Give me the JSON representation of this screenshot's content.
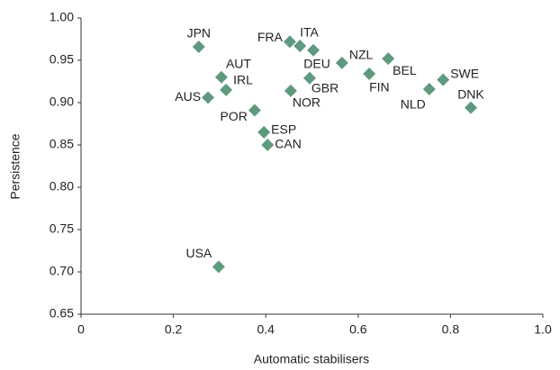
{
  "chart_data": {
    "type": "scatter",
    "xlabel": "Automatic stabilisers",
    "ylabel": "Persistence",
    "labels": [
      "JPN",
      "AUT",
      "IRL",
      "AUS",
      "POR",
      "ESP",
      "CAN",
      "NOR",
      "GBR",
      "FRA",
      "ITA",
      "DEU",
      "NZL",
      "BEL",
      "FIN",
      "NLD",
      "SWE",
      "DNK",
      "USA"
    ],
    "x": [
      0.255,
      0.304,
      0.314,
      0.275,
      0.376,
      0.396,
      0.404,
      0.454,
      0.495,
      0.452,
      0.474,
      0.503,
      0.565,
      0.665,
      0.624,
      0.754,
      0.784,
      0.844,
      0.298
    ],
    "values": [
      0.966,
      0.93,
      0.915,
      0.906,
      0.891,
      0.865,
      0.85,
      0.914,
      0.929,
      0.972,
      0.967,
      0.962,
      0.947,
      0.952,
      0.934,
      0.916,
      0.927,
      0.894,
      0.706
    ],
    "color": "#5f9a7e",
    "xlim": [
      0,
      1
    ],
    "xticks": [
      0,
      0.2,
      0.4,
      0.6,
      0.8,
      {
        "value": 1,
        "label": "1.0"
      }
    ],
    "ylim": [
      0.65,
      1
    ],
    "yticks": [
      0.65,
      {
        "value": 0.7,
        "label": "0.70"
      },
      0.75,
      {
        "value": 0.8,
        "label": "0.80"
      },
      0.85,
      {
        "value": 0.9,
        "label": "0.90"
      },
      0.95,
      {
        "value": 1,
        "label": "1.00"
      }
    ],
    "grid": false
  }
}
